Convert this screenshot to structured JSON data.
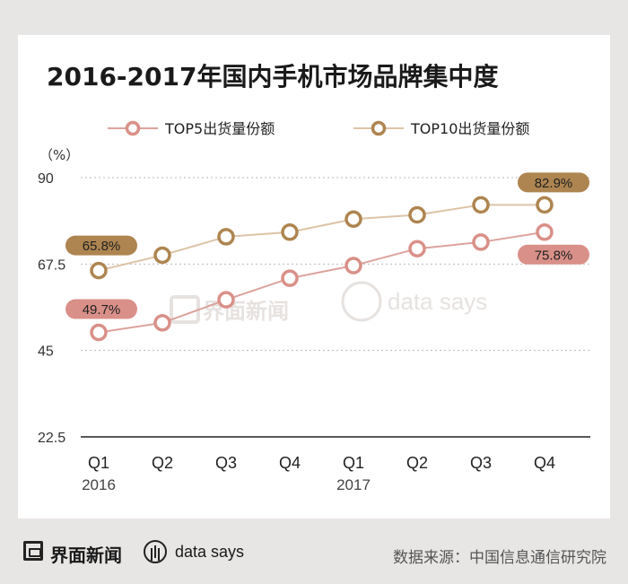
{
  "title": "2016-2017年国内手机市场品牌集中度",
  "unit_label": "（%）",
  "footer": {
    "brand": "界面新闻",
    "data_says": "data says",
    "source": "数据来源：中国信息通信研究院"
  },
  "watermark": {
    "brand": "界面新闻",
    "data_says": "data says"
  },
  "colors": {
    "top5": "#d99088",
    "top10": "#ae8550",
    "top5_line": "#dca39d",
    "top10_line": "#dcc4a6"
  },
  "chart_data": {
    "type": "line",
    "categories": [
      "Q1",
      "Q2",
      "Q3",
      "Q4",
      "Q1",
      "Q2",
      "Q3",
      "Q4"
    ],
    "year_labels": [
      {
        "index": 0,
        "label": "2016"
      },
      {
        "index": 4,
        "label": "2017"
      }
    ],
    "series": [
      {
        "name": "TOP5出货量份额",
        "values": [
          49.7,
          52.2,
          58.2,
          63.8,
          67.1,
          71.5,
          73.2,
          75.8
        ]
      },
      {
        "name": "TOP10出货量份额",
        "values": [
          65.8,
          69.8,
          74.6,
          75.8,
          79.2,
          80.3,
          82.9,
          82.9
        ]
      }
    ],
    "data_labels": [
      {
        "series": 1,
        "index": 0,
        "text": "65.8%"
      },
      {
        "series": 0,
        "index": 0,
        "text": "49.7%"
      },
      {
        "series": 1,
        "index": 7,
        "text": "82.9%"
      },
      {
        "series": 0,
        "index": 7,
        "text": "75.8%"
      }
    ],
    "yticks": [
      22.5,
      45,
      67.5,
      90
    ],
    "ylim": [
      22.5,
      90
    ],
    "ylabel": "（%）",
    "grid": true,
    "legend": "top"
  }
}
